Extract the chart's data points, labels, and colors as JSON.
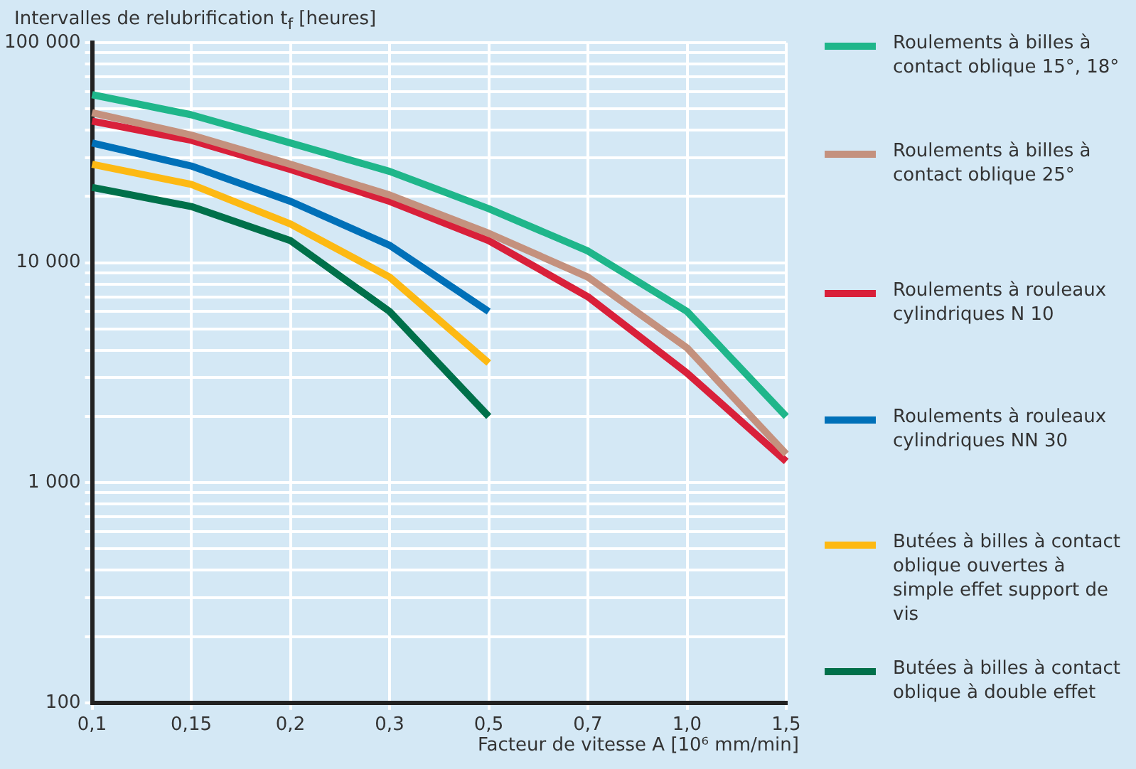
{
  "chart_data": {
    "type": "line",
    "xlabel": "Facteur de vitesse A [10⁶ mm/min]",
    "ylabel": "Intervalles de relubrification t$_{f}$ [heures]",
    "categories": [
      "0,1",
      "0,15",
      "0,2",
      "0,3",
      "0,5",
      "0,7",
      "1,0",
      "1,5"
    ],
    "log": "y",
    "ylim": [
      100,
      100000
    ],
    "yticks": [
      {
        "value": 100,
        "label": "100"
      },
      {
        "value": 200,
        "label": null
      },
      {
        "value": 300,
        "label": null
      },
      {
        "value": 400,
        "label": null
      },
      {
        "value": 500,
        "label": null
      },
      {
        "value": 600,
        "label": null
      },
      {
        "value": 700,
        "label": null
      },
      {
        "value": 800,
        "label": null
      },
      {
        "value": 900,
        "label": null
      },
      {
        "value": 1000,
        "label": "1 000"
      },
      {
        "value": 2000,
        "label": null
      },
      {
        "value": 3000,
        "label": null
      },
      {
        "value": 4000,
        "label": null
      },
      {
        "value": 5000,
        "label": null
      },
      {
        "value": 6000,
        "label": null
      },
      {
        "value": 7000,
        "label": null
      },
      {
        "value": 8000,
        "label": null
      },
      {
        "value": 9000,
        "label": null
      },
      {
        "value": 10000,
        "label": "10 000"
      },
      {
        "value": 20000,
        "label": null
      },
      {
        "value": 30000,
        "label": null
      },
      {
        "value": 40000,
        "label": null
      },
      {
        "value": 50000,
        "label": null
      },
      {
        "value": 60000,
        "label": null
      },
      {
        "value": 70000,
        "label": null
      },
      {
        "value": 80000,
        "label": null
      },
      {
        "value": 90000,
        "label": null
      },
      {
        "value": 100000,
        "label": "100 000"
      }
    ],
    "grid": true,
    "legend": "right",
    "marker": "none",
    "line_style": "solid",
    "series": [
      {
        "name": "Roulements à billes à contact oblique 15°, 18°",
        "color": "#1fb68a",
        "values": [
          58000,
          47000,
          35000,
          26000,
          17600,
          11300,
          6000,
          2000
        ]
      },
      {
        "name": "Roulements à billes à contact oblique 25°",
        "color": "#c4917e",
        "values": [
          48000,
          38000,
          28000,
          20300,
          13600,
          8600,
          4100,
          1350
        ]
      },
      {
        "name": "Roulements à rouleaux cylindriques N 10",
        "color": "#d9203a",
        "values": [
          44000,
          36000,
          26500,
          19000,
          12600,
          7000,
          3150,
          1250
        ]
      },
      {
        "name": "Roulements à rouleaux cylindriques NN 30",
        "color": "#0070b8",
        "values": [
          35000,
          27500,
          19000,
          12000,
          6000,
          null,
          null,
          null
        ]
      },
      {
        "name": "Butées à billes à contact oblique ouvertes à simple effet support de vis",
        "color": "#fdb913",
        "values": [
          28000,
          22700,
          15000,
          8600,
          3500,
          null,
          null,
          null
        ]
      },
      {
        "name": "Butées à billes à contact oblique à double effet",
        "color": "#00704a",
        "values": [
          22000,
          18000,
          12600,
          6000,
          2000,
          null,
          null,
          null
        ]
      }
    ]
  }
}
